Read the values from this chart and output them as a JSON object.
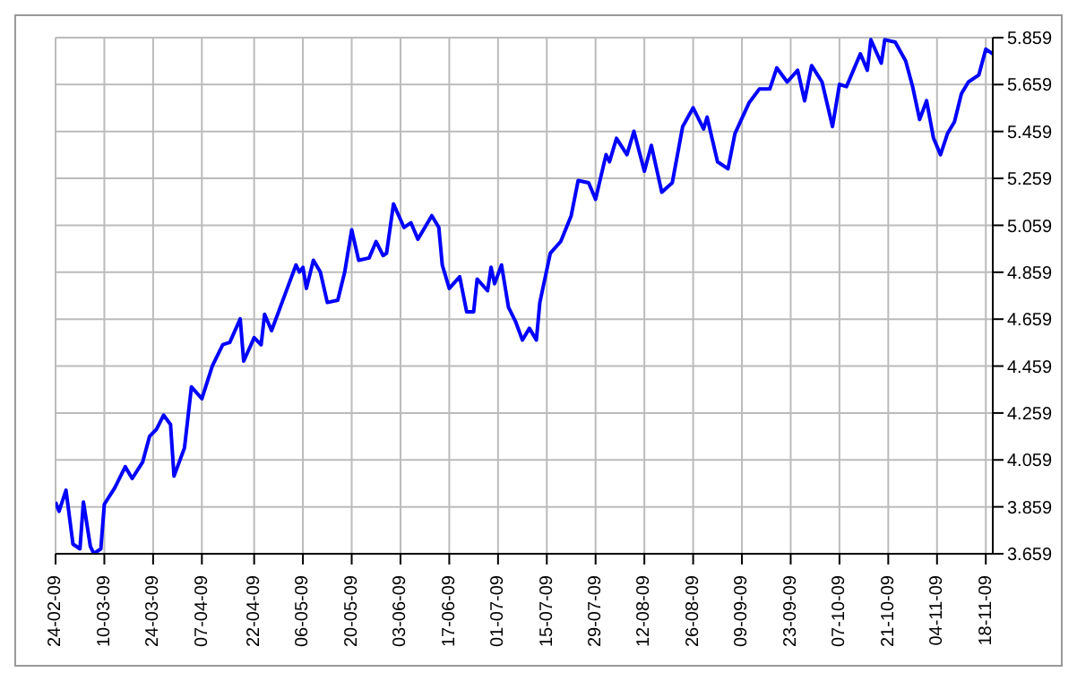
{
  "chart_data": {
    "type": "line",
    "x": [
      "--02-24",
      "--02-25",
      "--02-27",
      "--03-01",
      "--03-03",
      "--03-04",
      "--03-06",
      "--03-07",
      "--03-09",
      "--03-10",
      "--03-13",
      "--03-16",
      "--03-18",
      "--03-21",
      "--03-23",
      "--03-25",
      "--03-27",
      "--03-29",
      "--03-30",
      "--04-02",
      "--04-04",
      "--04-07",
      "--04-10",
      "--04-13",
      "--04-15",
      "--04-18",
      "--04-19",
      "--04-22",
      "--04-24",
      "--04-25",
      "--04-27",
      "--05-01",
      "--05-04",
      "--05-05",
      "--05-06",
      "--05-07",
      "--05-09",
      "--05-11",
      "--05-13",
      "--05-16",
      "--05-18",
      "--05-20",
      "--05-22",
      "--05-25",
      "--05-27",
      "--05-29",
      "--05-30",
      "--06-01",
      "--06-04",
      "--06-06",
      "--06-08",
      "--06-12",
      "--06-14",
      "--06-15",
      "--06-17",
      "--06-20",
      "--06-22",
      "--06-24",
      "--06-25",
      "--06-28",
      "--06-29",
      "--06-30",
      "--07-02",
      "--07-04",
      "--07-06",
      "--07-08",
      "--07-10",
      "--07-12",
      "--07-13",
      "--07-16",
      "--07-19",
      "--07-22",
      "--07-24",
      "--07-27",
      "--07-29",
      "--08-01",
      "--08-02",
      "--08-04",
      "--08-07",
      "--08-09",
      "--08-12",
      "--08-14",
      "--08-17",
      "--08-20",
      "--08-23",
      "--08-26",
      "--08-29",
      "--08-30",
      "--09-02",
      "--09-05",
      "--09-07",
      "--09-11",
      "--09-14",
      "--09-17",
      "--09-19",
      "--09-22",
      "--09-25",
      "--09-27",
      "--09-29",
      "--10-02",
      "--10-05",
      "--10-07",
      "--10-09",
      "--10-11",
      "--10-13",
      "--10-15",
      "--10-16",
      "--10-19",
      "--10-20",
      "--10-23",
      "--10-26",
      "--10-28",
      "--10-30",
      "--11-01",
      "--11-03",
      "--11-05",
      "--11-07",
      "--11-09",
      "--11-11",
      "--11-13",
      "--11-16",
      "--11-18",
      "--11-20"
    ],
    "series": [
      {
        "color": "#0000ff",
        "values": [
          3880,
          3840,
          3930,
          3700,
          3680,
          3880,
          3690,
          3660,
          3680,
          3870,
          3940,
          4030,
          3980,
          4050,
          4160,
          4190,
          4250,
          4210,
          3990,
          4110,
          4370,
          4320,
          4460,
          4550,
          4560,
          4660,
          4480,
          4580,
          4550,
          4680,
          4610,
          4770,
          4890,
          4860,
          4880,
          4790,
          4910,
          4860,
          4730,
          4740,
          4860,
          5040,
          4910,
          4920,
          4990,
          4930,
          4940,
          5150,
          5050,
          5070,
          5000,
          5100,
          5050,
          4890,
          4790,
          4840,
          4690,
          4690,
          4830,
          4780,
          4880,
          4810,
          4890,
          4710,
          4650,
          4570,
          4620,
          4570,
          4730,
          4940,
          4990,
          5100,
          5250,
          5240,
          5170,
          5360,
          5330,
          5430,
          5360,
          5460,
          5290,
          5400,
          5200,
          5240,
          5480,
          5560,
          5470,
          5520,
          5330,
          5300,
          5450,
          5580,
          5640,
          5640,
          5730,
          5670,
          5720,
          5590,
          5740,
          5670,
          5480,
          5660,
          5650,
          5720,
          5790,
          5720,
          5850,
          5750,
          5850,
          5840,
          5760,
          5650,
          5510,
          5590,
          5430,
          5360,
          5450,
          5500,
          5620,
          5670,
          5700,
          5810,
          5790
        ]
      }
    ],
    "xlim": [
      "--02-24",
      "--11-20"
    ],
    "xticks": [
      {
        "value": "--02-24",
        "label": "24-02-09"
      },
      {
        "value": "--03-10",
        "label": "10-03-09"
      },
      {
        "value": "--03-24",
        "label": "24-03-09"
      },
      {
        "value": "--04-07",
        "label": "07-04-09"
      },
      {
        "value": "--04-22",
        "label": "22-04-09"
      },
      {
        "value": "--05-06",
        "label": "06-05-09"
      },
      {
        "value": "--05-20",
        "label": "20-05-09"
      },
      {
        "value": "--06-03",
        "label": "03-06-09"
      },
      {
        "value": "--06-17",
        "label": "17-06-09"
      },
      {
        "value": "--07-01",
        "label": "01-07-09"
      },
      {
        "value": "--07-15",
        "label": "15-07-09"
      },
      {
        "value": "--07-29",
        "label": "29-07-09"
      },
      {
        "value": "--08-12",
        "label": "12-08-09"
      },
      {
        "value": "--08-26",
        "label": "26-08-09"
      },
      {
        "value": "--09-09",
        "label": "09-09-09"
      },
      {
        "value": "--09-23",
        "label": "23-09-09"
      },
      {
        "value": "--10-07",
        "label": "07-10-09"
      },
      {
        "value": "--10-21",
        "label": "21-10-09"
      },
      {
        "value": "--11-04",
        "label": "04-11-09"
      },
      {
        "value": "--11-18",
        "label": "18-11-09"
      }
    ],
    "ylim": [
      3659,
      5859
    ],
    "yticks": [
      {
        "value": 3659,
        "label": "3.659"
      },
      {
        "value": 3859,
        "label": "3.859"
      },
      {
        "value": 4059,
        "label": "4.059"
      },
      {
        "value": 4259,
        "label": "4.259"
      },
      {
        "value": 4459,
        "label": "4.459"
      },
      {
        "value": 4659,
        "label": "4.659"
      },
      {
        "value": 4859,
        "label": "4.859"
      },
      {
        "value": 5059,
        "label": "5.059"
      },
      {
        "value": 5259,
        "label": "5.259"
      },
      {
        "value": 5459,
        "label": "5.459"
      },
      {
        "value": 5659,
        "label": "5.659"
      },
      {
        "value": 5859,
        "label": "5.859"
      }
    ],
    "grid": true,
    "marker": "none",
    "line_style": "solid"
  }
}
